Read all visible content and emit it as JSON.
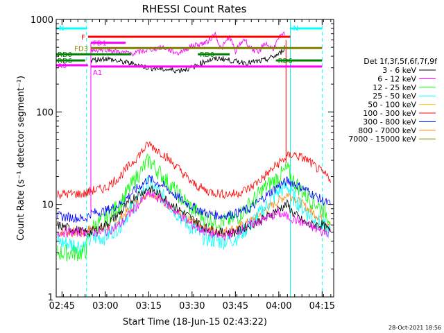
{
  "chart_data": {
    "type": "line",
    "title": "RHESSI Count Rates",
    "xlabel": "Start Time (18-Jun-15 02:43:22)",
    "ylabel": "Count Rate (s⁻¹ detector segment⁻¹)",
    "yscale": "log",
    "ylim": [
      1,
      1000
    ],
    "xlim_minutes": [
      0,
      96
    ],
    "x_ticks": [
      {
        "label": "02:45",
        "minute": 2
      },
      {
        "label": "03:00",
        "minute": 17
      },
      {
        "label": "03:15",
        "minute": 32
      },
      {
        "label": "03:30",
        "minute": 47
      },
      {
        "label": "03:45",
        "minute": 62
      },
      {
        "label": "04:00",
        "minute": 77
      },
      {
        "label": "04:15",
        "minute": 92
      }
    ],
    "y_ticks": [
      {
        "label": "1",
        "value": 1
      },
      {
        "label": "10",
        "value": 10
      },
      {
        "label": "100",
        "value": 100
      },
      {
        "label": "1000",
        "value": 1000
      }
    ],
    "legend_title": "Det 1f,3f,5f,6f,7f,9f",
    "legend_position": "right",
    "series": [
      {
        "name": "3 - 6 keV",
        "color": "#000000",
        "x": [
          0,
          10,
          12,
          17,
          22,
          27,
          32,
          37,
          42,
          47,
          52,
          57,
          62,
          67,
          72,
          77,
          80,
          82,
          87,
          92,
          95
        ],
        "values": [
          6,
          5,
          5,
          6,
          8,
          12,
          15,
          12,
          9,
          7,
          5.5,
          5,
          5,
          6,
          7,
          9,
          10,
          8,
          6,
          6,
          5
        ]
      },
      {
        "name": "6 - 12 keV",
        "color": "#ff00ff",
        "x": [
          0,
          10,
          17,
          22,
          27,
          32,
          37,
          42,
          47,
          52,
          57,
          62,
          67,
          72,
          77,
          82,
          87,
          92,
          95
        ],
        "values": [
          5,
          5,
          5,
          6,
          9,
          13,
          11,
          8,
          6,
          5,
          4.5,
          5,
          6,
          7,
          8,
          7,
          6,
          5,
          5
        ]
      },
      {
        "name": "12 - 25 keV",
        "color": "#00ff00",
        "x": [
          0,
          10,
          12,
          17,
          22,
          27,
          32,
          37,
          42,
          47,
          52,
          57,
          62,
          67,
          72,
          77,
          80,
          82,
          87,
          92,
          95
        ],
        "values": [
          3,
          3,
          5.5,
          7,
          10,
          18,
          30,
          20,
          13,
          9,
          7,
          6.5,
          7,
          10,
          15,
          20,
          24,
          18,
          12,
          9,
          7
        ]
      },
      {
        "name": "25 - 50 keV",
        "color": "#00ffff",
        "x": [
          0,
          10,
          12,
          17,
          22,
          27,
          32,
          37,
          42,
          47,
          52,
          57,
          62,
          67,
          72,
          77,
          80,
          82,
          87,
          92,
          95
        ],
        "values": [
          4,
          3.5,
          4.3,
          4.5,
          6,
          10,
          17,
          12,
          8,
          5.5,
          4.3,
          4,
          4.3,
          6,
          9,
          14,
          16,
          12,
          8,
          6,
          5
        ]
      },
      {
        "name": "50 - 100 keV",
        "color": "#ffcc00",
        "x": [
          0,
          95
        ],
        "values": [
          8,
          8
        ]
      },
      {
        "name": "100 - 300 keV",
        "color": "#ff0000",
        "x": [
          0,
          10,
          12,
          17,
          22,
          27,
          32,
          37,
          42,
          47,
          52,
          57,
          62,
          67,
          72,
          77,
          80,
          82,
          87,
          92,
          95
        ],
        "values": [
          13,
          13,
          14,
          15,
          20,
          30,
          45,
          35,
          25,
          17,
          14,
          13,
          13,
          15,
          20,
          28,
          33,
          35,
          30,
          22,
          19
        ]
      },
      {
        "name": "300 - 800 keV",
        "color": "#0000ff",
        "x": [
          0,
          10,
          12,
          17,
          22,
          27,
          32,
          37,
          42,
          47,
          52,
          57,
          62,
          67,
          72,
          77,
          80,
          82,
          87,
          92,
          95
        ],
        "values": [
          7.5,
          7,
          8,
          8.5,
          10,
          14,
          19,
          16,
          12,
          9.5,
          8,
          7.5,
          8,
          9,
          12,
          16,
          18,
          17,
          14,
          11,
          10
        ]
      },
      {
        "name": "800 - 7000 keV",
        "color": "#ff8000",
        "x": [
          0,
          10,
          12,
          17,
          22,
          27,
          32,
          37,
          42,
          47,
          52,
          57,
          62,
          67,
          72,
          77,
          80,
          82,
          87,
          92,
          95
        ],
        "values": [
          5,
          5,
          5.5,
          5.5,
          7,
          10,
          14,
          11,
          8,
          6.5,
          5.5,
          5,
          5.5,
          6.5,
          8.5,
          11,
          13,
          12,
          9,
          7,
          6
        ]
      },
      {
        "name": "7000 - 15000 keV",
        "color": "#808000",
        "x": [
          0,
          95
        ],
        "values": [
          9,
          9
        ]
      }
    ],
    "attenuator_states": [
      {
        "label": "N",
        "color": "#00ffff",
        "x": [
          0,
          10.5
        ]
      },
      {
        "label": "N",
        "color": "#00ffff",
        "x": [
          81,
          92
        ]
      }
    ],
    "decimation_bands": [
      {
        "label": "F",
        "color": "#ff0000",
        "y": 650,
        "x": [
          11,
          81
        ]
      },
      {
        "label": "FD1",
        "color": "#ff00ff",
        "y": 560,
        "x": [
          12,
          24
        ]
      },
      {
        "label": "FD3",
        "color": "#808000",
        "y": 490,
        "x": [
          12,
          92
        ]
      },
      {
        "label": "RD0",
        "color": "#008000",
        "y": 420,
        "x": [
          0,
          26
        ]
      },
      {
        "label": "RD0",
        "color": "#008000",
        "y": 420,
        "x": [
          49,
          60
        ]
      },
      {
        "label": "RD6",
        "color": "#008000",
        "y": 360,
        "x": [
          0,
          10
        ]
      },
      {
        "label": "RD6",
        "color": "#008000",
        "y": 360,
        "x": [
          76,
          92
        ]
      },
      {
        "label": "A0",
        "color": "#ff00ff",
        "y": 320,
        "x": [
          0,
          11
        ]
      },
      {
        "label": "A1",
        "color": "#ff00ff",
        "y": 310,
        "x": [
          12,
          92
        ]
      }
    ],
    "high_band": [
      {
        "name": "black-upper",
        "color": "#000000",
        "x": [
          12,
          17,
          22,
          27,
          32,
          37,
          42,
          47,
          52,
          57,
          62,
          67,
          72,
          77,
          78,
          79
        ],
        "values": [
          360,
          380,
          350,
          330,
          300,
          290,
          280,
          300,
          360,
          380,
          350,
          340,
          360,
          420,
          450,
          500
        ]
      },
      {
        "name": "magenta-upper",
        "color": "#ff00ff",
        "x": [
          12,
          17,
          22,
          27,
          32,
          37,
          42,
          47,
          52,
          55,
          57,
          60,
          62,
          65,
          67,
          70,
          72,
          75,
          77,
          79
        ],
        "values": [
          460,
          480,
          440,
          430,
          470,
          500,
          430,
          520,
          560,
          700,
          480,
          650,
          450,
          620,
          500,
          430,
          560,
          480,
          620,
          700
        ]
      }
    ],
    "timestamp": "28-Oct-2021 18:56"
  }
}
